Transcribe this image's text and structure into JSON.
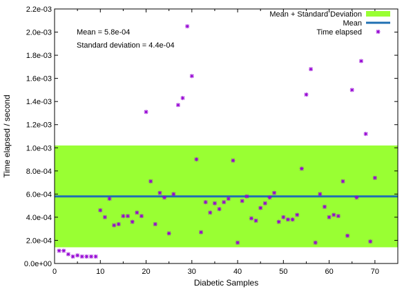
{
  "chart_data": {
    "type": "scatter",
    "xlabel": "Diabetic Samples",
    "ylabel": "Time elapsed / second",
    "xlim": [
      0,
      75
    ],
    "ylim": [
      0,
      0.0022
    ],
    "xticks": [
      0,
      10,
      20,
      30,
      40,
      50,
      60,
      70
    ],
    "xtick_labels": [
      "0",
      "10",
      "20",
      "30",
      "40",
      "50",
      "60",
      "70"
    ],
    "yticks": [
      0,
      0.0002,
      0.0004,
      0.0006,
      0.0008,
      0.001,
      0.0012,
      0.0014,
      0.0016,
      0.0018,
      0.002,
      0.0022
    ],
    "ytick_labels": [
      "0.0e+00",
      "2.0e-04",
      "4.0e-04",
      "6.0e-04",
      "8.0e-04",
      "1.0e-03",
      "1.2e-03",
      "1.4e-03",
      "1.6e-03",
      "1.8e-03",
      "2.0e-03",
      "2.2e-03"
    ],
    "grid": false,
    "legend_position": "top-right",
    "annotations": [
      "Mean = 5.8e-04",
      "Standard deviation = 4.4e-04"
    ],
    "band": {
      "name": "Mean + Standard Deviation",
      "y_low": 0.00014,
      "y_high": 0.00102,
      "color": "#99ff33"
    },
    "mean_line": {
      "name": "Mean",
      "y": 0.00058,
      "color": "#1f6fb2"
    },
    "series": [
      {
        "name": "Time elapsed",
        "color": "#9400d3",
        "marker": "star",
        "x": [
          1,
          2,
          3,
          4,
          5,
          6,
          7,
          8,
          9,
          10,
          11,
          12,
          13,
          14,
          15,
          16,
          17,
          18,
          19,
          20,
          21,
          22,
          23,
          24,
          25,
          26,
          27,
          28,
          29,
          30,
          31,
          32,
          33,
          34,
          35,
          36,
          37,
          38,
          39,
          40,
          41,
          42,
          43,
          44,
          45,
          46,
          47,
          48,
          49,
          50,
          51,
          52,
          53,
          54,
          55,
          56,
          57,
          58,
          59,
          60,
          61,
          62,
          63,
          64,
          65,
          66,
          67,
          68,
          69,
          70
        ],
        "y": [
          0.00011,
          0.00011,
          8e-05,
          6e-05,
          7e-05,
          6e-05,
          6e-05,
          6e-05,
          6e-05,
          0.00046,
          0.0004,
          0.00056,
          0.00033,
          0.00034,
          0.00041,
          0.00041,
          0.00036,
          0.00044,
          0.00041,
          0.00131,
          0.00071,
          0.00034,
          0.00061,
          0.00057,
          0.00026,
          0.0006,
          0.00137,
          0.00143,
          0.00205,
          0.00162,
          0.0009,
          0.00027,
          0.00053,
          0.00044,
          0.00052,
          0.00047,
          0.00053,
          0.00056,
          0.00089,
          0.00018,
          0.00054,
          0.00058,
          0.00039,
          0.00037,
          0.00048,
          0.00052,
          0.00057,
          0.00061,
          0.00036,
          0.0004,
          0.00038,
          0.00038,
          0.00042,
          0.00082,
          0.00146,
          0.00168,
          0.00018,
          0.0006,
          0.00049,
          0.0004,
          0.00042,
          0.00041,
          0.00071,
          0.00024,
          0.0015,
          0.00057,
          0.00175,
          0.00112,
          0.00019,
          0.00074
        ]
      }
    ]
  }
}
